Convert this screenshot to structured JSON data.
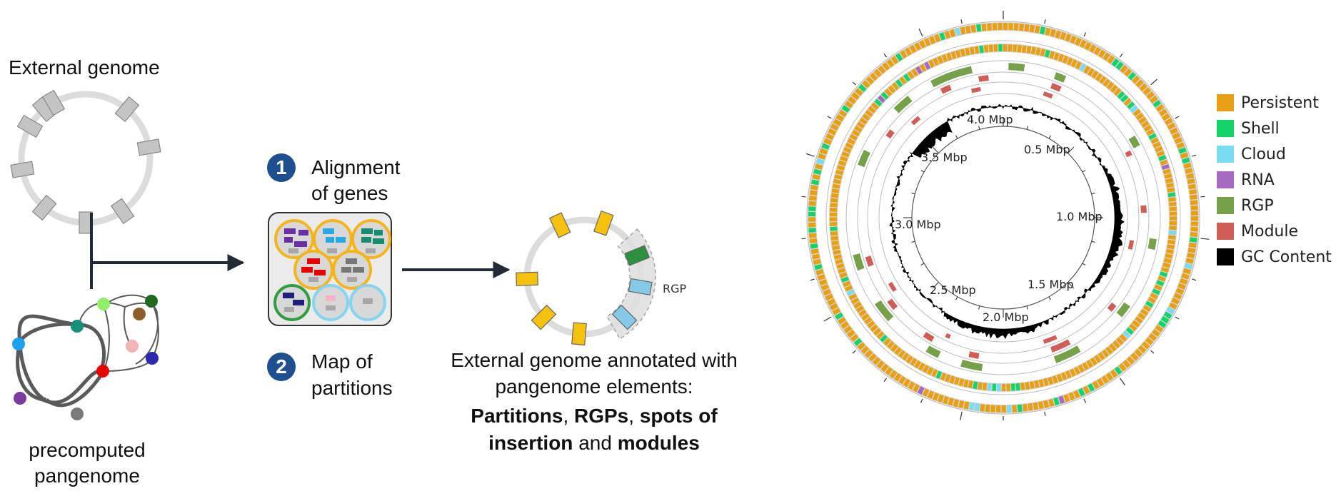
{
  "external_genome_label": "External genome",
  "precomputed_label_line1": "precomputed",
  "precomputed_label_line2": "pangenome",
  "step1": {
    "number": "1",
    "line1": "Alignment",
    "line2": "of genes"
  },
  "step2": {
    "number": "2",
    "line1": "Map of",
    "line2": "partitions"
  },
  "rgp_tag": "RGP",
  "annotated": {
    "line1": "External genome annotated with",
    "line2": "pangenome elements:",
    "partitions": "Partitions",
    "rgps": "RGPs",
    "spots": "spots of",
    "insertion": "insertion",
    "and_word": "and",
    "modules": "modules"
  },
  "circular_map": {
    "ticks": [
      "4.0 Mbp",
      "0.5 Mbp",
      "3.5 Mbp",
      "1.0 Mbp",
      "3.0 Mbp",
      "2.5 Mbp",
      "1.5 Mbp",
      "2.0 Mbp"
    ]
  },
  "legend": [
    {
      "label": "Persistent",
      "color": "#e8a013"
    },
    {
      "label": "Shell",
      "color": "#13d46a"
    },
    {
      "label": "Cloud",
      "color": "#79dcf2"
    },
    {
      "label": "RNA",
      "color": "#a569bd"
    },
    {
      "label": "RGP",
      "color": "#77a04a"
    },
    {
      "label": "Module",
      "color": "#d15d57"
    },
    {
      "label": "GC Content",
      "color": "#000000"
    }
  ],
  "colors": {
    "gene_gray": "#c4c4c4",
    "ring_gray": "#dcdcdc",
    "gene_yellow": "#f4c20d",
    "arrow": "#222a35",
    "step_blue": "#1f4f8f"
  }
}
